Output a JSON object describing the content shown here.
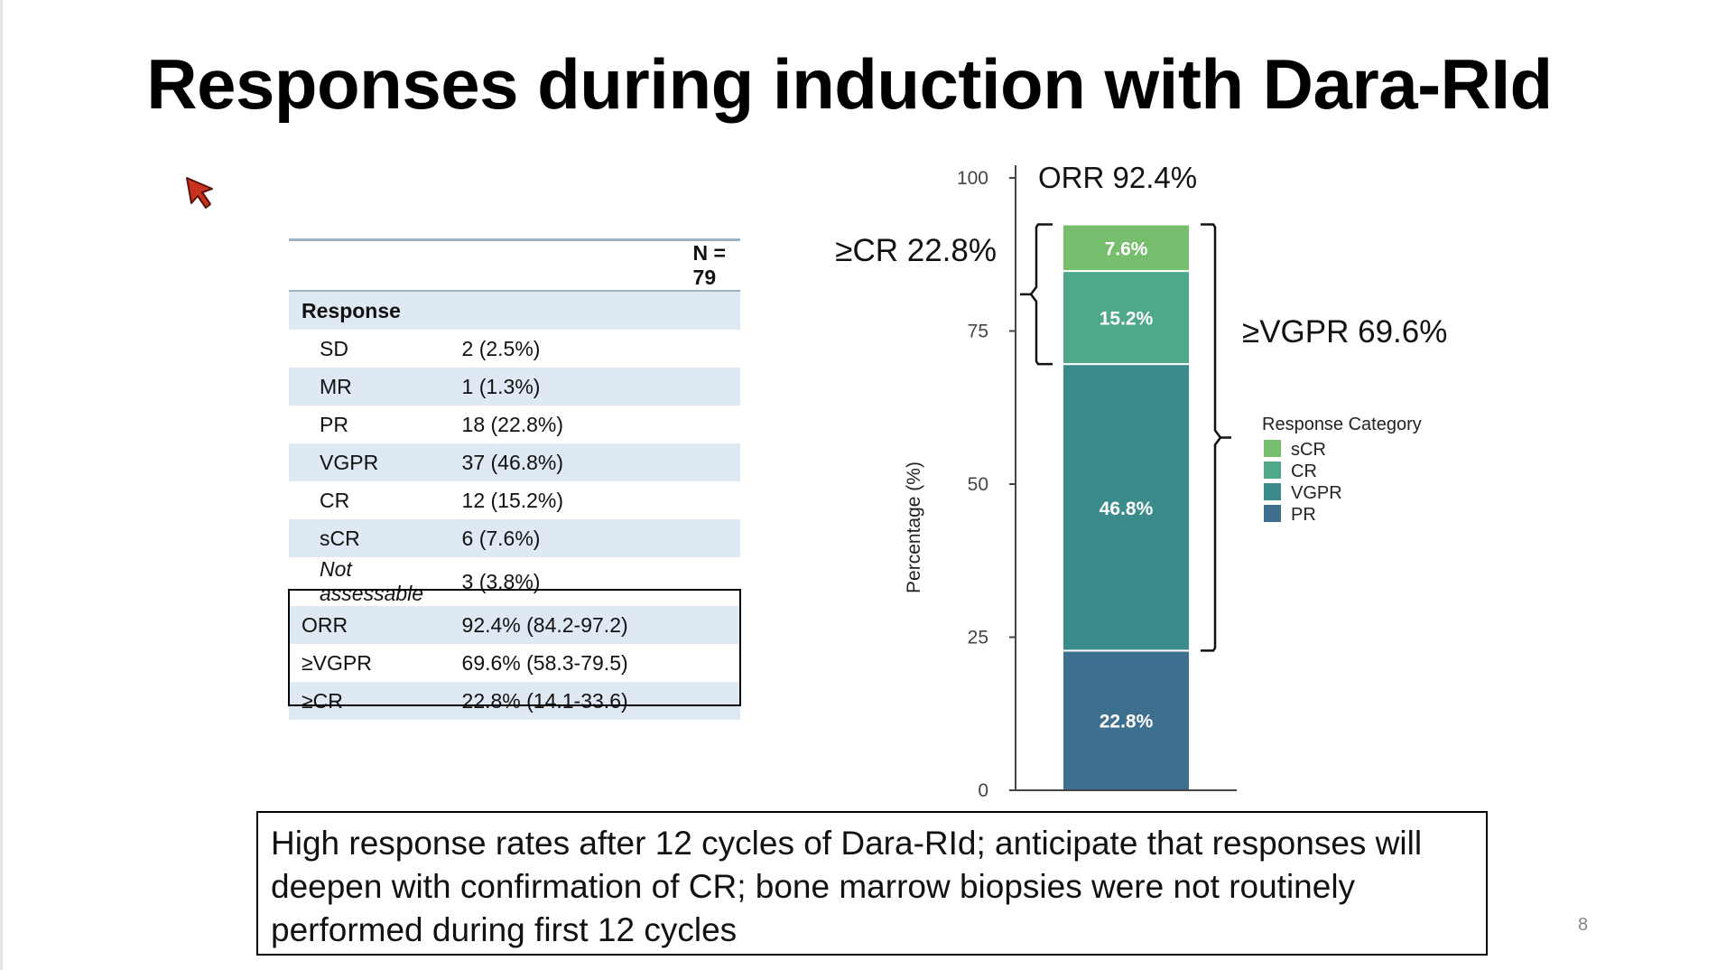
{
  "slide": {
    "title": "Responses during induction with Dara-RId",
    "page_number": "8",
    "message": "High response rates after 12 cycles of Dara-RId; anticipate that responses will deepen with confirmation of CR; bone marrow biopsies were not routinely performed during first 12 cycles"
  },
  "table": {
    "n_header": "N = 79",
    "section_label": "Response",
    "rows": [
      {
        "label": "SD",
        "value": "2 (2.5%)"
      },
      {
        "label": "MR",
        "value": "1 (1.3%)"
      },
      {
        "label": "PR",
        "value": "18 (22.8%)"
      },
      {
        "label": "VGPR",
        "value": "37 (46.8%)"
      },
      {
        "label": "CR",
        "value": "12 (15.2%)"
      },
      {
        "label": "sCR",
        "value": "6 (7.6%)"
      },
      {
        "label": "Not assessable",
        "value": "3 (3.8%)"
      }
    ],
    "summary": [
      {
        "label": "ORR",
        "value": "92.4% (84.2-97.2)"
      },
      {
        "label": "≥VGPR",
        "value": "69.6% (58.3-79.5)"
      },
      {
        "label": "≥CR",
        "value": "22.8% (14.1-33.6)"
      }
    ]
  },
  "chart_data": {
    "type": "bar",
    "stacked": true,
    "ylabel": "Percentage (%)",
    "ylim": [
      0,
      100
    ],
    "yticks": [
      0,
      25,
      50,
      75,
      100
    ],
    "legend_title": "Response Category",
    "legend": [
      "sCR",
      "CR",
      "VGPR",
      "PR"
    ],
    "series": [
      {
        "name": "PR",
        "value": 22.8,
        "label": "22.8%",
        "color": "#3f6f8f"
      },
      {
        "name": "VGPR",
        "value": 46.8,
        "label": "46.8%",
        "color": "#3b8b8d"
      },
      {
        "name": "CR",
        "value": 15.2,
        "label": "15.2%",
        "color": "#4fa88a"
      },
      {
        "name": "sCR",
        "value": 7.6,
        "label": "7.6%",
        "color": "#76bd6e"
      }
    ],
    "annotations": {
      "orr": "ORR 92.4%",
      "cr_plus": "≥CR 22.8%",
      "vgpr_plus": "≥VGPR 69.6%"
    }
  }
}
